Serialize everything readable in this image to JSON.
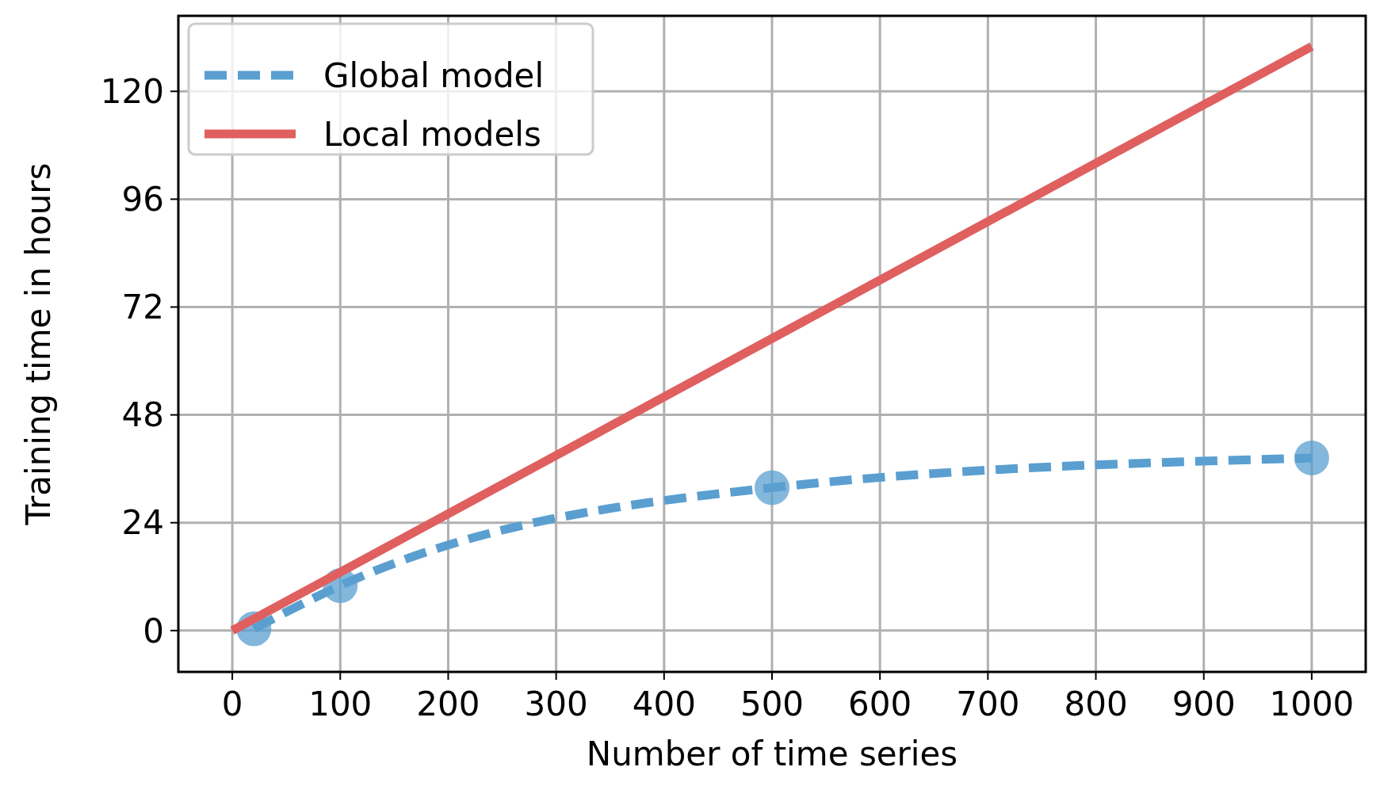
{
  "chart_data": {
    "type": "line",
    "xlabel": "Number of time series",
    "ylabel": "Training time in hours",
    "xlim": [
      -50,
      1050
    ],
    "ylim": [
      -9.2,
      136.8
    ],
    "xticks": [
      0,
      100,
      200,
      300,
      400,
      500,
      600,
      700,
      800,
      900,
      1000
    ],
    "yticks": [
      0,
      24,
      48,
      72,
      96,
      120
    ],
    "grid": true,
    "legend": "top left",
    "series": [
      {
        "name": "Global model",
        "color": "#5a9fd0",
        "x": [
          20,
          100,
          500,
          1000
        ],
        "values": [
          0.4,
          10,
          31.8,
          38.4
        ],
        "marker": "circle",
        "line_style": "dashed"
      },
      {
        "name": "Local models",
        "color": "#e05f5f",
        "x": [
          0,
          1000
        ],
        "values": [
          0,
          130
        ],
        "marker": "none",
        "line_style": "solid"
      }
    ]
  }
}
